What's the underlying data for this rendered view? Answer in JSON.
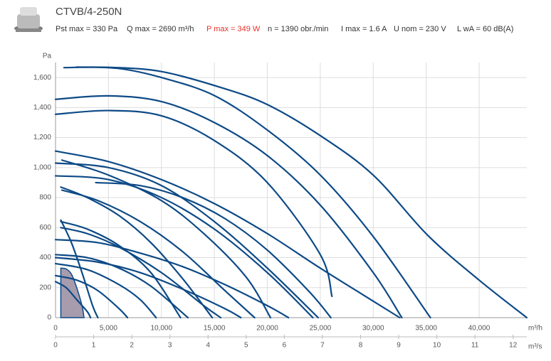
{
  "header": {
    "title": "CTVB/4-250N",
    "specs": [
      {
        "text": "Pst max = 330 Pa"
      },
      {
        "text": "Q max = 2690 m³/h"
      },
      {
        "text": "P max = 349 W",
        "color": "#e8302c"
      },
      {
        "text": "n = 1390 obr./min"
      },
      {
        "text": "I max = 1.6 A"
      },
      {
        "text": "U nom = 230 V"
      },
      {
        "text": "L wA = 60 dB(A)"
      }
    ]
  },
  "chart_data": {
    "type": "line",
    "ylabel": "Pa",
    "xlabel": "m³/h",
    "x2label": "m³/s",
    "grid": true,
    "color": "#0d4a86",
    "ylim": [
      0,
      1700
    ],
    "yticks": [
      0,
      200,
      400,
      600,
      800,
      {
        "value": 1000,
        "label": "1,000"
      },
      {
        "value": 1200,
        "label": "1,200"
      },
      {
        "value": 1400,
        "label": "1,400"
      },
      {
        "value": 1600,
        "label": "1,600"
      }
    ],
    "xlim": [
      0,
      44500
    ],
    "xticks": [
      0,
      {
        "value": 5000,
        "label": "5,000"
      },
      {
        "value": 10000,
        "label": "10,000"
      },
      {
        "value": 15000,
        "label": "15,000"
      },
      {
        "value": 20000,
        "label": "20,000"
      },
      {
        "value": 25000,
        "label": "25,000"
      },
      {
        "value": 30000,
        "label": "30,000"
      },
      {
        "value": 35000,
        "label": "35,000"
      },
      {
        "value": 40000,
        "label": "40,000"
      }
    ],
    "x2lim": [
      0,
      12.36
    ],
    "x2ticks": [
      0,
      1,
      2,
      3,
      4,
      5,
      6,
      7,
      8,
      9,
      10,
      11,
      12
    ],
    "series": [
      {
        "x": [
          500,
          1000,
          1500,
          2000,
          2500,
          2690
        ],
        "values": [
          330,
          325,
          290,
          200,
          80,
          0
        ],
        "color": "#a79cae",
        "fill": true
      },
      {
        "x": [
          800,
          5000,
          10000,
          15600,
          20000,
          25000,
          30000,
          35100,
          40000,
          44500
        ],
        "values": [
          1666,
          1668,
          1640,
          1534,
          1420,
          1213,
          950,
          552,
          250,
          0
        ]
      },
      {
        "x": [
          2000,
          6000,
          10000,
          15000,
          20000,
          25000,
          30000,
          35400
        ],
        "values": [
          1670,
          1660,
          1600,
          1480,
          1250,
          950,
          540,
          0
        ]
      },
      {
        "x": [
          0,
          5000,
          10000,
          15000,
          20000,
          25000,
          30000,
          32700
        ],
        "values": [
          1455,
          1478,
          1440,
          1300,
          1080,
          750,
          300,
          0
        ]
      },
      {
        "x": [
          0,
          5000,
          10000,
          15000,
          20000,
          25000,
          26100
        ],
        "values": [
          1355,
          1380,
          1345,
          1180,
          900,
          420,
          142
        ]
      },
      {
        "x": [
          0,
          5000,
          10000,
          15000,
          20000,
          25000,
          30000,
          32500
        ],
        "values": [
          1110,
          1040,
          920,
          760,
          560,
          330,
          110,
          0
        ]
      },
      {
        "x": [
          0,
          5000,
          10000,
          15000,
          20000,
          24800
        ],
        "values": [
          1030,
          1000,
          880,
          640,
          330,
          0
        ]
      },
      {
        "x": [
          600,
          5000,
          10000,
          14000,
          18000,
          20300
        ],
        "values": [
          1050,
          950,
          780,
          560,
          270,
          0
        ]
      },
      {
        "x": [
          0,
          5000,
          10000,
          15000,
          20000,
          24300
        ],
        "values": [
          945,
          920,
          800,
          590,
          300,
          0
        ]
      },
      {
        "x": [
          3800,
          8000,
          12000,
          16000,
          20000,
          24000,
          26000
        ],
        "values": [
          900,
          880,
          800,
          660,
          450,
          170,
          0
        ]
      },
      {
        "x": [
          500,
          3000,
          6000,
          9000,
          12000,
          14800
        ],
        "values": [
          870,
          800,
          680,
          500,
          260,
          0
        ]
      },
      {
        "x": [
          600,
          4000,
          8000,
          12000,
          16000,
          18800
        ],
        "values": [
          850,
          780,
          640,
          440,
          180,
          0
        ]
      },
      {
        "x": [
          500,
          3000,
          6000,
          9000,
          11800
        ],
        "values": [
          640,
          590,
          480,
          300,
          0
        ]
      },
      {
        "x": [
          500,
          3000,
          6000,
          10000,
          14000,
          15600
        ],
        "values": [
          600,
          560,
          470,
          300,
          80,
          0
        ]
      },
      {
        "x": [
          0,
          4000,
          8000,
          12000,
          16000,
          20000,
          22000
        ],
        "values": [
          520,
          500,
          430,
          340,
          220,
          80,
          0
        ]
      },
      {
        "x": [
          0,
          3000,
          6000,
          9000,
          12500
        ],
        "values": [
          420,
          400,
          330,
          210,
          0
        ]
      },
      {
        "x": [
          0,
          4000,
          8000,
          12000,
          16000,
          17500
        ],
        "values": [
          400,
          370,
          300,
          190,
          60,
          0
        ]
      },
      {
        "x": [
          0,
          3000,
          6000,
          8000,
          9500
        ],
        "values": [
          360,
          320,
          220,
          120,
          0
        ]
      },
      {
        "x": [
          0,
          2000,
          4000,
          6000,
          6800
        ],
        "values": [
          280,
          250,
          180,
          60,
          0
        ]
      },
      {
        "x": [
          500,
          1500,
          2500,
          3500,
          4000
        ],
        "values": [
          650,
          500,
          300,
          80,
          0
        ]
      },
      {
        "x": [
          0,
          1000,
          2000,
          3000,
          3300
        ],
        "values": [
          240,
          200,
          120,
          40,
          0
        ]
      }
    ]
  }
}
